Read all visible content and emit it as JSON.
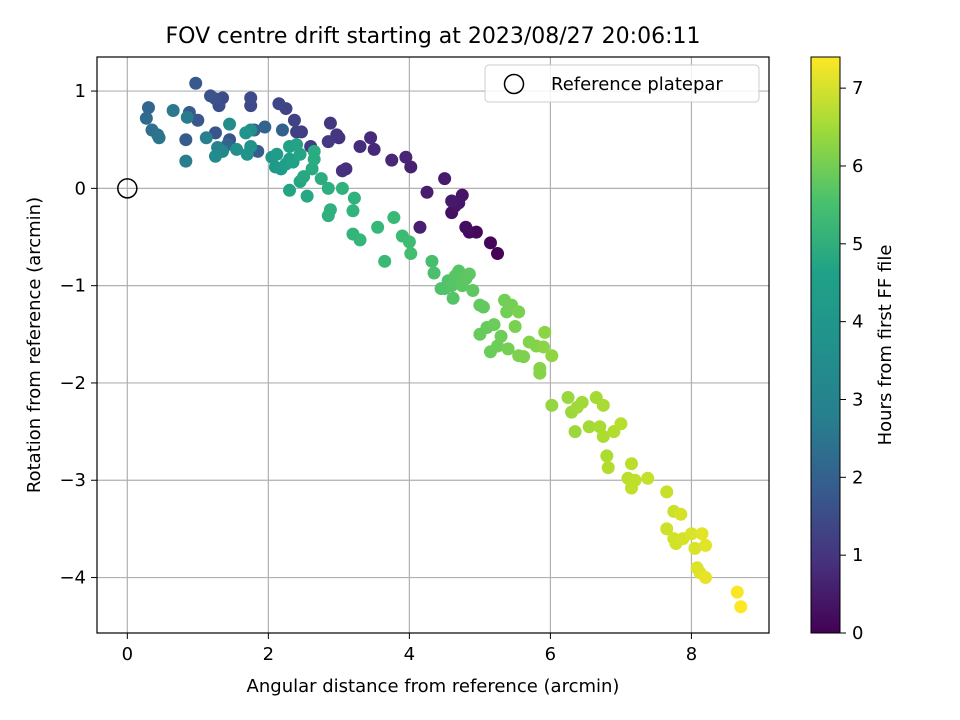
{
  "chart_data": {
    "type": "scatter",
    "title": "FOV centre drift starting at 2023/08/27 20:06:11",
    "xlabel": "Angular distance from reference (arcmin)",
    "ylabel": "Rotation from reference (arcmin)",
    "xlim": [
      -0.43,
      9.1
    ],
    "ylim": [
      -4.57,
      1.35
    ],
    "xticks": [
      0,
      2,
      4,
      6,
      8
    ],
    "xtick_labels": [
      "0",
      "2",
      "4",
      "6",
      "8"
    ],
    "yticks": [
      1,
      0,
      -1,
      -2,
      -3,
      -4
    ],
    "ytick_labels": [
      "1",
      "0",
      "−1",
      "−2",
      "−3",
      "−4"
    ],
    "grid": true,
    "legend": {
      "placement": "top-right",
      "entries": [
        {
          "label": "Reference platepar",
          "marker": "open-circle"
        }
      ]
    },
    "reference_point": {
      "x": 0,
      "y": 0
    },
    "colorbar": {
      "label": "Hours from first FF file",
      "colormap": "viridis",
      "vmin": 0,
      "vmax": 7.4,
      "ticks": [
        0,
        1,
        2,
        3,
        4,
        5,
        6,
        7
      ],
      "tick_labels": [
        "0",
        "1",
        "2",
        "3",
        "4",
        "5",
        "6",
        "7"
      ]
    },
    "points": [
      {
        "x": 5.25,
        "y": -0.67,
        "c": 0.05
      },
      {
        "x": 5.15,
        "y": -0.56,
        "c": 0.1
      },
      {
        "x": 4.95,
        "y": -0.45,
        "c": 0.15
      },
      {
        "x": 4.85,
        "y": -0.45,
        "c": 0.2
      },
      {
        "x": 4.8,
        "y": -0.4,
        "c": 0.25
      },
      {
        "x": 4.6,
        "y": -0.25,
        "c": 0.3
      },
      {
        "x": 4.65,
        "y": -0.18,
        "c": 0.35
      },
      {
        "x": 4.75,
        "y": -0.07,
        "c": 0.4
      },
      {
        "x": 4.7,
        "y": -0.15,
        "c": 0.45
      },
      {
        "x": 4.6,
        "y": -0.13,
        "c": 0.5
      },
      {
        "x": 4.5,
        "y": 0.1,
        "c": 0.55
      },
      {
        "x": 4.25,
        "y": -0.04,
        "c": 0.6
      },
      {
        "x": 4.15,
        "y": -0.4,
        "c": 0.65
      },
      {
        "x": 4.02,
        "y": 0.22,
        "c": 0.7
      },
      {
        "x": 3.95,
        "y": 0.32,
        "c": 0.75
      },
      {
        "x": 3.75,
        "y": 0.29,
        "c": 0.8
      },
      {
        "x": 3.5,
        "y": 0.4,
        "c": 0.85
      },
      {
        "x": 3.45,
        "y": 0.52,
        "c": 0.9
      },
      {
        "x": 3.3,
        "y": 0.43,
        "c": 0.95
      },
      {
        "x": 3.1,
        "y": 0.2,
        "c": 1.0
      },
      {
        "x": 3.05,
        "y": 0.18,
        "c": 1.05
      },
      {
        "x": 3.0,
        "y": 0.52,
        "c": 1.1
      },
      {
        "x": 2.97,
        "y": 0.55,
        "c": 1.15
      },
      {
        "x": 2.88,
        "y": 0.67,
        "c": 1.2
      },
      {
        "x": 2.85,
        "y": 0.48,
        "c": 1.25
      },
      {
        "x": 2.6,
        "y": 0.43,
        "c": 1.3
      },
      {
        "x": 2.47,
        "y": 0.58,
        "c": 1.35
      },
      {
        "x": 2.4,
        "y": 0.58,
        "c": 1.4
      },
      {
        "x": 2.37,
        "y": 0.7,
        "c": 1.45
      },
      {
        "x": 2.25,
        "y": 0.82,
        "c": 1.5
      },
      {
        "x": 2.15,
        "y": 0.87,
        "c": 1.55
      },
      {
        "x": 1.75,
        "y": 0.85,
        "c": 1.6
      },
      {
        "x": 1.75,
        "y": 0.93,
        "c": 1.65
      },
      {
        "x": 1.35,
        "y": 0.93,
        "c": 1.7
      },
      {
        "x": 1.3,
        "y": 0.85,
        "c": 1.75
      },
      {
        "x": 1.25,
        "y": 0.92,
        "c": 1.8
      },
      {
        "x": 1.18,
        "y": 0.95,
        "c": 1.85
      },
      {
        "x": 1.45,
        "y": 0.5,
        "c": 1.9
      },
      {
        "x": 1.25,
        "y": 0.57,
        "c": 1.95
      },
      {
        "x": 1.0,
        "y": 0.7,
        "c": 2.0
      },
      {
        "x": 0.97,
        "y": 1.08,
        "c": 2.05
      },
      {
        "x": 0.88,
        "y": 0.78,
        "c": 2.1
      },
      {
        "x": 0.83,
        "y": 0.5,
        "c": 2.15
      },
      {
        "x": 1.85,
        "y": 0.38,
        "c": 2.2
      },
      {
        "x": 2.2,
        "y": 0.6,
        "c": 2.25
      },
      {
        "x": 1.8,
        "y": 0.6,
        "c": 2.3
      },
      {
        "x": 1.95,
        "y": 0.63,
        "c": 2.35
      },
      {
        "x": 1.42,
        "y": 0.45,
        "c": 2.4
      },
      {
        "x": 0.3,
        "y": 0.83,
        "c": 2.45
      },
      {
        "x": 0.27,
        "y": 0.72,
        "c": 2.55
      },
      {
        "x": 0.35,
        "y": 0.6,
        "c": 2.65
      },
      {
        "x": 0.43,
        "y": 0.55,
        "c": 2.75
      },
      {
        "x": 0.45,
        "y": 0.52,
        "c": 2.85
      },
      {
        "x": 0.65,
        "y": 0.8,
        "c": 3.0
      },
      {
        "x": 0.85,
        "y": 0.73,
        "c": 3.1
      },
      {
        "x": 0.83,
        "y": 0.28,
        "c": 3.15
      },
      {
        "x": 1.12,
        "y": 0.52,
        "c": 3.25
      },
      {
        "x": 1.28,
        "y": 0.42,
        "c": 3.35
      },
      {
        "x": 1.35,
        "y": 0.38,
        "c": 3.45
      },
      {
        "x": 1.25,
        "y": 0.33,
        "c": 3.55
      },
      {
        "x": 1.45,
        "y": 0.66,
        "c": 3.6
      },
      {
        "x": 1.75,
        "y": 0.6,
        "c": 3.65
      },
      {
        "x": 1.55,
        "y": 0.4,
        "c": 3.7
      },
      {
        "x": 1.7,
        "y": 0.35,
        "c": 3.75
      },
      {
        "x": 1.75,
        "y": 0.43,
        "c": 3.8
      },
      {
        "x": 1.68,
        "y": 0.57,
        "c": 3.85
      },
      {
        "x": 2.05,
        "y": 0.32,
        "c": 3.9
      },
      {
        "x": 2.1,
        "y": 0.22,
        "c": 3.95
      },
      {
        "x": 2.18,
        "y": 0.2,
        "c": 4.0
      },
      {
        "x": 2.12,
        "y": 0.35,
        "c": 4.05
      },
      {
        "x": 2.25,
        "y": 0.25,
        "c": 4.1
      },
      {
        "x": 2.3,
        "y": 0.3,
        "c": 4.15
      },
      {
        "x": 2.35,
        "y": 0.27,
        "c": 4.2
      },
      {
        "x": 2.3,
        "y": 0.43,
        "c": 4.2
      },
      {
        "x": 2.4,
        "y": 0.45,
        "c": 4.25
      },
      {
        "x": 2.45,
        "y": 0.35,
        "c": 4.3
      },
      {
        "x": 2.3,
        "y": -0.02,
        "c": 4.3
      },
      {
        "x": 2.45,
        "y": 0.07,
        "c": 4.35
      },
      {
        "x": 2.55,
        "y": -0.08,
        "c": 4.4
      },
      {
        "x": 2.5,
        "y": 0.12,
        "c": 4.45
      },
      {
        "x": 2.62,
        "y": 0.2,
        "c": 4.5
      },
      {
        "x": 2.65,
        "y": 0.3,
        "c": 4.55
      },
      {
        "x": 2.65,
        "y": 0.38,
        "c": 4.55
      },
      {
        "x": 2.75,
        "y": 0.1,
        "c": 4.6
      },
      {
        "x": 2.85,
        "y": 0.0,
        "c": 4.65
      },
      {
        "x": 2.85,
        "y": -0.28,
        "c": 4.7
      },
      {
        "x": 2.88,
        "y": -0.22,
        "c": 4.7
      },
      {
        "x": 3.05,
        "y": 0.0,
        "c": 4.75
      },
      {
        "x": 3.22,
        "y": -0.1,
        "c": 4.75
      },
      {
        "x": 3.2,
        "y": -0.23,
        "c": 4.8
      },
      {
        "x": 3.2,
        "y": -0.47,
        "c": 4.85
      },
      {
        "x": 3.3,
        "y": -0.53,
        "c": 4.9
      },
      {
        "x": 3.55,
        "y": -0.4,
        "c": 4.95
      },
      {
        "x": 3.65,
        "y": -0.75,
        "c": 5.0
      },
      {
        "x": 3.78,
        "y": -0.3,
        "c": 5.0
      },
      {
        "x": 3.9,
        "y": -0.49,
        "c": 5.05
      },
      {
        "x": 4.0,
        "y": -0.55,
        "c": 5.1
      },
      {
        "x": 4.02,
        "y": -0.67,
        "c": 5.15
      },
      {
        "x": 4.32,
        "y": -0.75,
        "c": 5.2
      },
      {
        "x": 4.35,
        "y": -0.87,
        "c": 5.25
      },
      {
        "x": 4.45,
        "y": -1.03,
        "c": 5.3
      },
      {
        "x": 4.5,
        "y": -1.03,
        "c": 5.35
      },
      {
        "x": 4.55,
        "y": -0.95,
        "c": 5.35
      },
      {
        "x": 4.6,
        "y": -1.0,
        "c": 5.4
      },
      {
        "x": 4.62,
        "y": -1.13,
        "c": 5.4
      },
      {
        "x": 4.65,
        "y": -0.9,
        "c": 5.45
      },
      {
        "x": 4.7,
        "y": -0.85,
        "c": 5.45
      },
      {
        "x": 4.75,
        "y": -1.0,
        "c": 5.5
      },
      {
        "x": 4.8,
        "y": -0.93,
        "c": 5.5
      },
      {
        "x": 4.85,
        "y": -0.88,
        "c": 5.55
      },
      {
        "x": 4.9,
        "y": -1.05,
        "c": 5.55
      },
      {
        "x": 5.0,
        "y": -1.2,
        "c": 5.6
      },
      {
        "x": 5.05,
        "y": -1.22,
        "c": 5.6
      },
      {
        "x": 5.0,
        "y": -1.5,
        "c": 5.65
      },
      {
        "x": 5.1,
        "y": -1.43,
        "c": 5.65
      },
      {
        "x": 5.15,
        "y": -1.68,
        "c": 5.7
      },
      {
        "x": 5.2,
        "y": -1.4,
        "c": 5.7
      },
      {
        "x": 5.25,
        "y": -1.62,
        "c": 5.75
      },
      {
        "x": 5.3,
        "y": -1.52,
        "c": 5.75
      },
      {
        "x": 5.35,
        "y": -1.15,
        "c": 5.8
      },
      {
        "x": 5.38,
        "y": -1.27,
        "c": 5.8
      },
      {
        "x": 5.45,
        "y": -1.2,
        "c": 5.85
      },
      {
        "x": 5.4,
        "y": -1.65,
        "c": 5.85
      },
      {
        "x": 5.5,
        "y": -1.42,
        "c": 5.9
      },
      {
        "x": 5.55,
        "y": -1.27,
        "c": 5.9
      },
      {
        "x": 5.55,
        "y": -1.72,
        "c": 5.95
      },
      {
        "x": 5.62,
        "y": -1.73,
        "c": 5.95
      },
      {
        "x": 5.7,
        "y": -1.58,
        "c": 6.0
      },
      {
        "x": 5.8,
        "y": -1.62,
        "c": 6.0
      },
      {
        "x": 5.85,
        "y": -1.85,
        "c": 6.05
      },
      {
        "x": 5.85,
        "y": -1.9,
        "c": 6.05
      },
      {
        "x": 5.9,
        "y": -1.63,
        "c": 6.1
      },
      {
        "x": 5.92,
        "y": -1.48,
        "c": 6.1
      },
      {
        "x": 6.02,
        "y": -1.72,
        "c": 6.15
      },
      {
        "x": 6.02,
        "y": -2.23,
        "c": 6.2
      },
      {
        "x": 6.25,
        "y": -2.15,
        "c": 6.25
      },
      {
        "x": 6.3,
        "y": -2.3,
        "c": 6.3
      },
      {
        "x": 6.35,
        "y": -2.5,
        "c": 6.3
      },
      {
        "x": 6.38,
        "y": -2.25,
        "c": 6.35
      },
      {
        "x": 6.45,
        "y": -2.2,
        "c": 6.35
      },
      {
        "x": 6.55,
        "y": -2.45,
        "c": 6.4
      },
      {
        "x": 6.65,
        "y": -2.15,
        "c": 6.4
      },
      {
        "x": 6.7,
        "y": -2.45,
        "c": 6.45
      },
      {
        "x": 6.75,
        "y": -2.23,
        "c": 6.45
      },
      {
        "x": 6.75,
        "y": -2.55,
        "c": 6.5
      },
      {
        "x": 6.8,
        "y": -2.75,
        "c": 6.5
      },
      {
        "x": 6.82,
        "y": -2.87,
        "c": 6.55
      },
      {
        "x": 6.9,
        "y": -2.5,
        "c": 6.55
      },
      {
        "x": 7.0,
        "y": -2.42,
        "c": 6.6
      },
      {
        "x": 7.1,
        "y": -2.98,
        "c": 6.65
      },
      {
        "x": 7.15,
        "y": -2.83,
        "c": 6.65
      },
      {
        "x": 7.15,
        "y": -3.08,
        "c": 6.7
      },
      {
        "x": 7.2,
        "y": -3.0,
        "c": 6.7
      },
      {
        "x": 7.38,
        "y": -2.98,
        "c": 6.75
      },
      {
        "x": 7.65,
        "y": -3.12,
        "c": 6.8
      },
      {
        "x": 7.65,
        "y": -3.5,
        "c": 6.85
      },
      {
        "x": 7.75,
        "y": -3.32,
        "c": 6.85
      },
      {
        "x": 7.75,
        "y": -3.6,
        "c": 6.9
      },
      {
        "x": 7.78,
        "y": -3.65,
        "c": 6.9
      },
      {
        "x": 7.85,
        "y": -3.35,
        "c": 6.95
      },
      {
        "x": 7.88,
        "y": -3.6,
        "c": 6.95
      },
      {
        "x": 8.0,
        "y": -3.55,
        "c": 7.0
      },
      {
        "x": 8.05,
        "y": -3.7,
        "c": 7.0
      },
      {
        "x": 8.08,
        "y": -3.9,
        "c": 7.05
      },
      {
        "x": 8.12,
        "y": -3.95,
        "c": 7.05
      },
      {
        "x": 8.15,
        "y": -3.55,
        "c": 7.1
      },
      {
        "x": 8.2,
        "y": -3.67,
        "c": 7.1
      },
      {
        "x": 8.2,
        "y": -4.0,
        "c": 7.15
      },
      {
        "x": 8.65,
        "y": -4.15,
        "c": 7.35
      },
      {
        "x": 8.7,
        "y": -4.3,
        "c": 7.4
      }
    ]
  }
}
